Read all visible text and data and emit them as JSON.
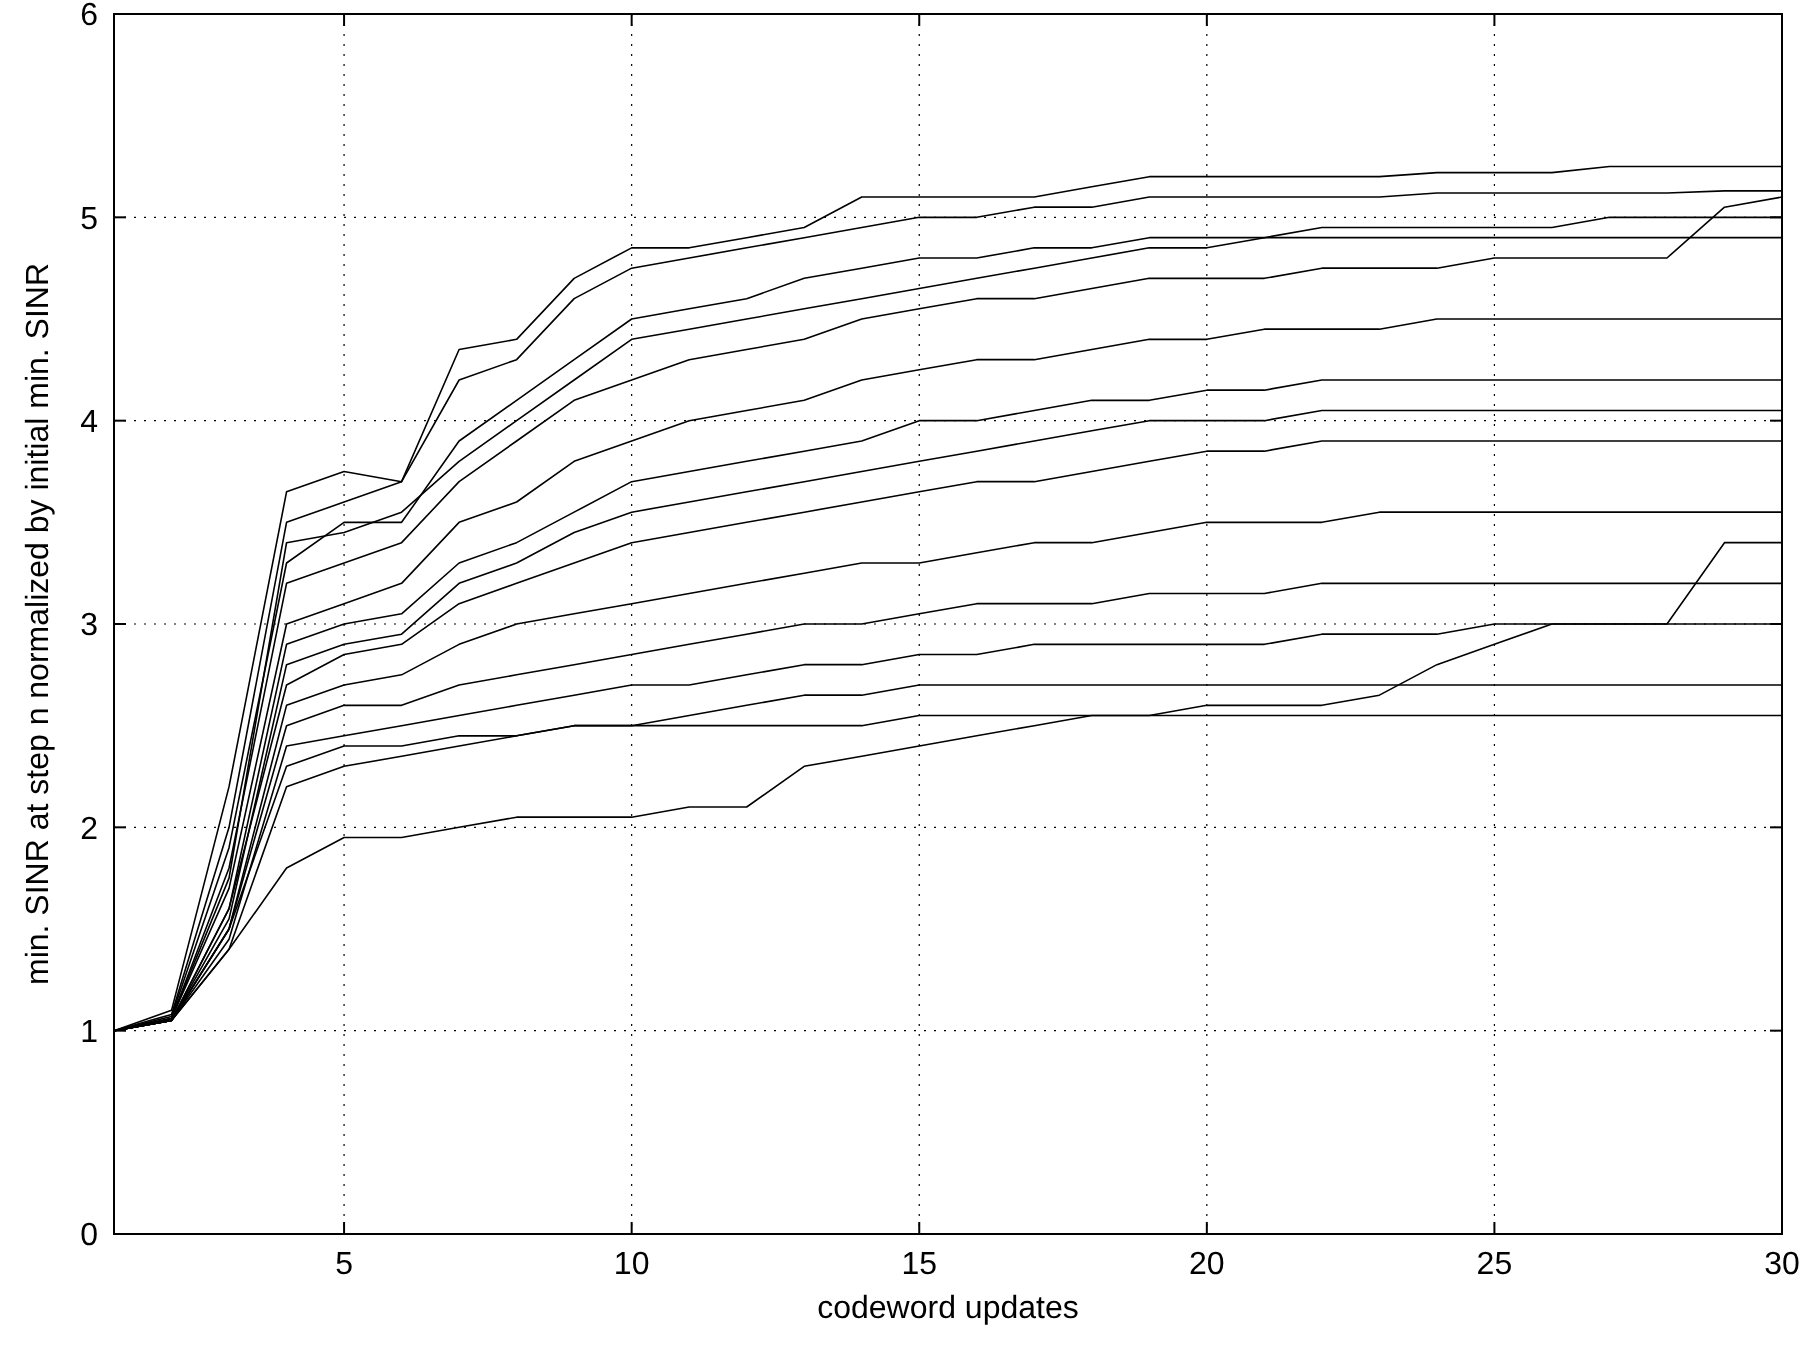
{
  "chart_data": {
    "type": "line",
    "xlabel": "codeword updates",
    "ylabel": "min. SINR at step n normalized by initial min. SINR",
    "xlim": [
      1,
      30
    ],
    "xticks": [
      5,
      10,
      15,
      20,
      25,
      30
    ],
    "ylim": [
      0,
      6
    ],
    "yticks": [
      0,
      1,
      2,
      3,
      4,
      5,
      6
    ],
    "grid": true,
    "line_style": "solid",
    "x": [
      1,
      2,
      3,
      4,
      5,
      6,
      7,
      8,
      9,
      10,
      11,
      12,
      13,
      14,
      15,
      16,
      17,
      18,
      19,
      20,
      21,
      22,
      23,
      24,
      25,
      26,
      27,
      28,
      29,
      30
    ],
    "series": [
      {
        "color": "#000000",
        "values": [
          1,
          1.1,
          2.2,
          3.65,
          3.75,
          3.7,
          4.35,
          4.4,
          4.7,
          4.85,
          4.85,
          4.9,
          4.95,
          5.1,
          5.1,
          5.1,
          5.1,
          5.15,
          5.2,
          5.2,
          5.2,
          5.2,
          5.2,
          5.22,
          5.22,
          5.22,
          5.25,
          5.25,
          5.25,
          5.25
        ]
      },
      {
        "color": "#000000",
        "values": [
          1,
          1.08,
          2.0,
          3.5,
          3.6,
          3.7,
          4.2,
          4.3,
          4.6,
          4.75,
          4.8,
          4.85,
          4.9,
          4.95,
          5.0,
          5.0,
          5.05,
          5.05,
          5.1,
          5.1,
          5.1,
          5.1,
          5.1,
          5.12,
          5.12,
          5.12,
          5.12,
          5.12,
          5.13,
          5.13
        ]
      },
      {
        "color": "#000000",
        "values": [
          1,
          1.07,
          1.9,
          3.3,
          3.5,
          3.5,
          3.9,
          4.1,
          4.3,
          4.5,
          4.55,
          4.6,
          4.7,
          4.75,
          4.8,
          4.8,
          4.85,
          4.85,
          4.9,
          4.9,
          4.9,
          4.95,
          4.95,
          4.95,
          4.95,
          4.95,
          5.0,
          5.0,
          5.0,
          5.0
        ]
      },
      {
        "color": "#000000",
        "values": [
          1,
          1.06,
          1.8,
          3.2,
          3.3,
          3.4,
          3.7,
          3.9,
          4.1,
          4.2,
          4.3,
          4.35,
          4.4,
          4.5,
          4.55,
          4.6,
          4.6,
          4.65,
          4.7,
          4.7,
          4.7,
          4.75,
          4.75,
          4.75,
          4.8,
          4.8,
          4.8,
          4.8,
          5.05,
          5.1
        ]
      },
      {
        "color": "#000000",
        "values": [
          1,
          1.06,
          1.7,
          3.0,
          3.1,
          3.2,
          3.5,
          3.6,
          3.8,
          3.9,
          4.0,
          4.05,
          4.1,
          4.2,
          4.25,
          4.3,
          4.3,
          4.35,
          4.4,
          4.4,
          4.45,
          4.45,
          4.45,
          4.5,
          4.5,
          4.5,
          4.5,
          4.5,
          4.5,
          4.5
        ]
      },
      {
        "color": "#000000",
        "values": [
          1,
          1.05,
          1.6,
          2.9,
          3.0,
          3.05,
          3.3,
          3.4,
          3.55,
          3.7,
          3.75,
          3.8,
          3.85,
          3.9,
          4.0,
          4.0,
          4.05,
          4.1,
          4.1,
          4.15,
          4.15,
          4.2,
          4.2,
          4.2,
          4.2,
          4.2,
          4.2,
          4.2,
          4.2,
          4.2
        ]
      },
      {
        "color": "#000000",
        "values": [
          1,
          1.05,
          1.6,
          2.7,
          2.85,
          2.9,
          3.1,
          3.2,
          3.3,
          3.4,
          3.45,
          3.5,
          3.55,
          3.6,
          3.65,
          3.7,
          3.7,
          3.75,
          3.8,
          3.85,
          3.85,
          3.9,
          3.9,
          3.9,
          3.9,
          3.9,
          3.9,
          3.9,
          3.9,
          3.9
        ]
      },
      {
        "color": "#000000",
        "values": [
          1,
          1.05,
          1.5,
          2.6,
          2.7,
          2.75,
          2.9,
          3.0,
          3.05,
          3.1,
          3.15,
          3.2,
          3.25,
          3.3,
          3.3,
          3.35,
          3.4,
          3.4,
          3.45,
          3.5,
          3.5,
          3.5,
          3.55,
          3.55,
          3.55,
          3.55,
          3.55,
          3.55,
          3.55,
          3.55
        ]
      },
      {
        "color": "#000000",
        "values": [
          1,
          1.05,
          1.5,
          2.5,
          2.6,
          2.6,
          2.7,
          2.75,
          2.8,
          2.85,
          2.9,
          2.95,
          3.0,
          3.0,
          3.05,
          3.1,
          3.1,
          3.1,
          3.15,
          3.15,
          3.15,
          3.2,
          3.2,
          3.2,
          3.2,
          3.2,
          3.2,
          3.2,
          3.2,
          3.2
        ]
      },
      {
        "color": "#000000",
        "values": [
          1,
          1.05,
          1.45,
          2.4,
          2.45,
          2.5,
          2.55,
          2.6,
          2.65,
          2.7,
          2.7,
          2.75,
          2.8,
          2.8,
          2.85,
          2.85,
          2.9,
          2.9,
          2.9,
          2.9,
          2.9,
          2.95,
          2.95,
          2.95,
          3.0,
          3.0,
          3.0,
          3.0,
          3.0,
          3.0
        ]
      },
      {
        "color": "#000000",
        "values": [
          1,
          1.05,
          1.4,
          2.2,
          2.3,
          2.35,
          2.4,
          2.45,
          2.5,
          2.5,
          2.55,
          2.6,
          2.65,
          2.65,
          2.7,
          2.7,
          2.7,
          2.7,
          2.7,
          2.7,
          2.7,
          2.7,
          2.7,
          2.7,
          2.7,
          2.7,
          2.7,
          2.7,
          2.7,
          2.7
        ]
      },
      {
        "color": "#000000",
        "values": [
          1,
          1.05,
          1.4,
          1.8,
          1.95,
          1.95,
          2.0,
          2.05,
          2.05,
          2.05,
          2.1,
          2.1,
          2.3,
          2.35,
          2.4,
          2.45,
          2.5,
          2.55,
          2.55,
          2.55,
          2.55,
          2.55,
          2.55,
          2.55,
          2.55,
          2.55,
          2.55,
          2.55,
          2.55,
          2.55
        ]
      },
      {
        "color": "#000000",
        "values": [
          1,
          1.05,
          1.5,
          2.3,
          2.4,
          2.4,
          2.45,
          2.45,
          2.5,
          2.5,
          2.5,
          2.5,
          2.5,
          2.5,
          2.55,
          2.55,
          2.55,
          2.55,
          2.55,
          2.6,
          2.6,
          2.6,
          2.65,
          2.8,
          2.9,
          3.0,
          3.0,
          3.0,
          3.4,
          3.4
        ]
      },
      {
        "color": "#000000",
        "values": [
          1,
          1.06,
          1.75,
          3.4,
          3.45,
          3.55,
          3.8,
          4.0,
          4.2,
          4.4,
          4.45,
          4.5,
          4.55,
          4.6,
          4.65,
          4.7,
          4.75,
          4.8,
          4.85,
          4.85,
          4.9,
          4.9,
          4.9,
          4.9,
          4.9,
          4.9,
          4.9,
          4.9,
          4.9,
          4.9
        ]
      },
      {
        "color": "#000000",
        "values": [
          1,
          1.05,
          1.55,
          2.8,
          2.9,
          2.95,
          3.2,
          3.3,
          3.45,
          3.55,
          3.6,
          3.65,
          3.7,
          3.75,
          3.8,
          3.85,
          3.9,
          3.95,
          4.0,
          4.0,
          4.0,
          4.05,
          4.05,
          4.05,
          4.05,
          4.05,
          4.05,
          4.05,
          4.05,
          4.05
        ]
      }
    ]
  }
}
